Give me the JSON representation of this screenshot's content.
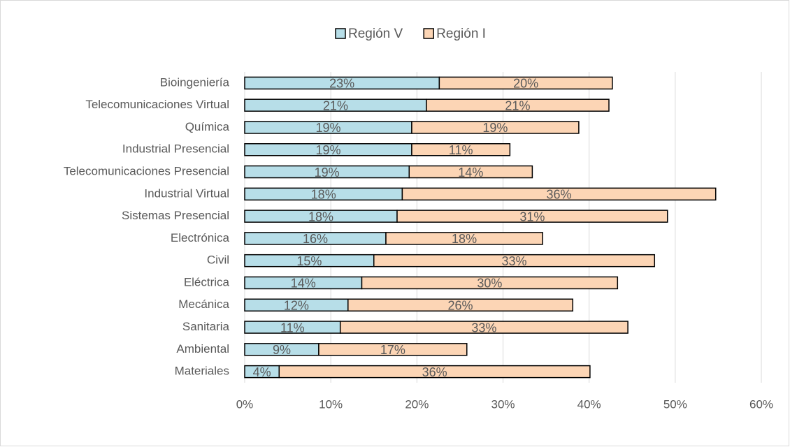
{
  "chart_data": {
    "type": "bar",
    "orientation": "horizontal",
    "stacked": true,
    "categories": [
      "Bioingeniería",
      "Telecomunicaciones Virtual",
      "Química",
      "Industrial Presencial",
      "Telecomunicaciones Presencial",
      "Industrial Virtual",
      "Sistemas Presencial",
      "Electrónica",
      "Civil",
      "Eléctrica",
      "Mecánica",
      "Sanitaria",
      "Ambiental",
      "Materiales"
    ],
    "series": [
      {
        "name": "Región V",
        "color": "#b7dee8",
        "values": [
          22.6,
          21.1,
          19.4,
          19.4,
          19.1,
          18.3,
          17.7,
          16.4,
          15.0,
          13.6,
          12.0,
          11.1,
          8.6,
          4.0
        ],
        "value_labels": [
          "23%",
          "21%",
          "19%",
          "19%",
          "19%",
          "18%",
          "18%",
          "16%",
          "15%",
          "14%",
          "12%",
          "11%",
          "9%",
          "4%"
        ]
      },
      {
        "name": "Región I",
        "color": "#fcd5b5",
        "values": [
          20.1,
          21.2,
          19.4,
          11.4,
          14.3,
          36.4,
          31.4,
          18.2,
          32.6,
          29.7,
          26.1,
          33.4,
          17.2,
          36.1
        ],
        "value_labels": [
          "20%",
          "21%",
          "19%",
          "11%",
          "14%",
          "36%",
          "31%",
          "18%",
          "33%",
          "30%",
          "26%",
          "33%",
          "17%",
          "36%"
        ]
      }
    ],
    "xlim": [
      0,
      60
    ],
    "xticks": [
      {
        "value": 0,
        "label": "0%"
      },
      {
        "value": 10,
        "label": "10%"
      },
      {
        "value": 20,
        "label": "20%"
      },
      {
        "value": 30,
        "label": "30%"
      },
      {
        "value": 40,
        "label": "40%"
      },
      {
        "value": 50,
        "label": "50%"
      },
      {
        "value": 60,
        "label": "60%"
      }
    ],
    "grid": true,
    "legend": "top"
  }
}
